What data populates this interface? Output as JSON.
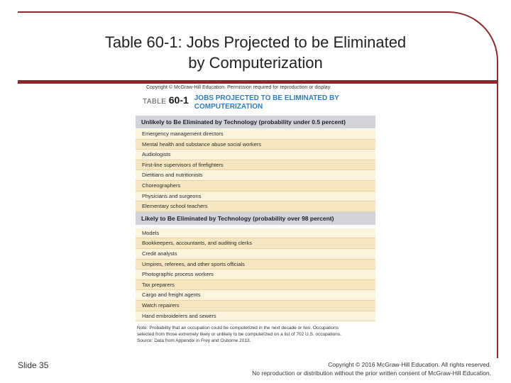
{
  "slide": {
    "title_line1": "Table 60-1: Jobs Projected to be Eliminated",
    "title_line2": "by Computerization",
    "slide_number": "Slide 35",
    "copyright_line1": "Copyright © 2016 McGraw-Hill Education. All rights reserved.",
    "copyright_line2": "No reproduction or distribution without the prior written consent of McGraw-Hill Education."
  },
  "figure": {
    "permission": "Copyright © McGraw-Hill Education. Permission required for reproduction or display.",
    "table_label": "TABLE",
    "table_number": "60-1",
    "table_title_line1": "JOBS PROJECTED TO BE ELIMINATED BY",
    "table_title_line2": "COMPUTERIZATION",
    "section_unlikely": "Unlikely to Be Eliminated by Technology (probability under 0.5 percent)",
    "unlikely_rows": [
      "Emergency management directors",
      "Mental health and substance abuse social workers",
      "Audiologists",
      "First-line supervisors of firefighters",
      "Dietitians and nutritionists",
      "Choreographers",
      "Physicians and surgeons",
      "Elementary school teachers"
    ],
    "section_likely": "Likely to Be Eliminated by Technology (probability over 98 percent)",
    "likely_rows": [
      "Models",
      "Bookkeepers, accountants, and auditing clerks",
      "Credit analysts",
      "Umpires, referees, and other sports officials",
      "Photographic process workers",
      "Tax preparers",
      "Cargo and freight agents",
      "Watch repairers",
      "Hand embroiderers and sewers"
    ],
    "note_line1": "Note: Probability that an occupation could be computerized in the next decade or two. Occupations",
    "note_line2": "selected from those extremely likely or unlikely to be computerized on a list of 702 U.S. occupations.",
    "note_line3": "Source: Data from Appendix in Frey and Osborne 2013."
  }
}
